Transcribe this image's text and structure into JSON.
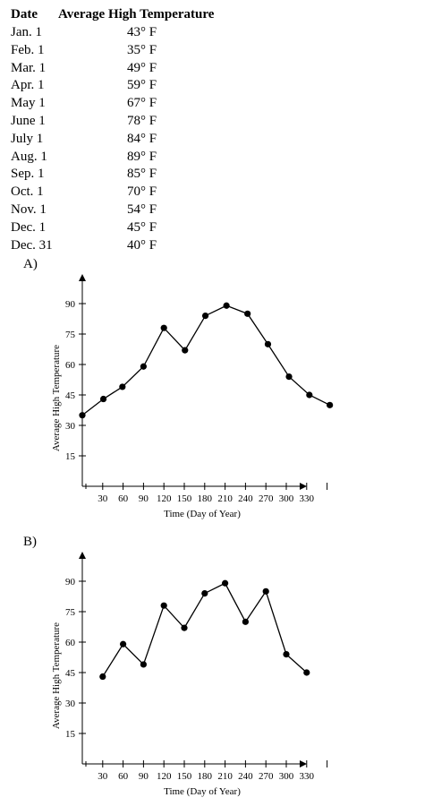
{
  "table": {
    "header_date": "Date",
    "header_temp": "Average High Temperature",
    "rows": [
      {
        "date": "Jan. 1",
        "temp": "43° F"
      },
      {
        "date": "Feb. 1",
        "temp": "35° F"
      },
      {
        "date": "Mar. 1",
        "temp": "49° F"
      },
      {
        "date": "Apr. 1",
        "temp": "59° F"
      },
      {
        "date": "May 1",
        "temp": "67° F"
      },
      {
        "date": "June 1",
        "temp": "78° F"
      },
      {
        "date": "July 1",
        "temp": "84° F"
      },
      {
        "date": "Aug. 1",
        "temp": "89° F"
      },
      {
        "date": "Sep. 1",
        "temp": "85° F"
      },
      {
        "date": "Oct. 1",
        "temp": "70° F"
      },
      {
        "date": "Nov. 1",
        "temp": "54° F"
      },
      {
        "date": "Dec. 1",
        "temp": "45° F"
      },
      {
        "date": "Dec. 31",
        "temp": "40° F"
      }
    ]
  },
  "options": {
    "a_label": "A)",
    "b_label": "B)"
  },
  "chart_data": [
    {
      "type": "line",
      "option": "A)",
      "xlabel": "Time (Day of Year)",
      "ylabel": "Average High Temperature",
      "xticks": [
        30,
        60,
        90,
        120,
        150,
        180,
        210,
        240,
        270,
        300,
        330
      ],
      "yticks": [
        15,
        30,
        45,
        60,
        75,
        90
      ],
      "xlim": [
        0,
        360
      ],
      "ylim": [
        0,
        95
      ],
      "grid": false,
      "x": [
        0,
        31,
        59,
        90,
        120,
        151,
        181,
        212,
        243,
        273,
        304,
        334,
        364
      ],
      "y": [
        35,
        43,
        49,
        59,
        78,
        67,
        84,
        89,
        85,
        70,
        54,
        45,
        40
      ]
    },
    {
      "type": "line",
      "option": "B)",
      "xlabel": "Time (Day of Year)",
      "ylabel": "Average High Temperature",
      "xticks": [
        30,
        60,
        90,
        120,
        150,
        180,
        210,
        240,
        270,
        300,
        330
      ],
      "yticks": [
        15,
        30,
        45,
        60,
        75,
        90
      ],
      "xlim": [
        0,
        360
      ],
      "ylim": [
        0,
        95
      ],
      "grid": false,
      "x": [
        30,
        60,
        90,
        120,
        150,
        180,
        210,
        240,
        270,
        300,
        330
      ],
      "y": [
        43,
        59,
        49,
        78,
        67,
        84,
        89,
        70,
        85,
        54,
        45
      ]
    }
  ]
}
